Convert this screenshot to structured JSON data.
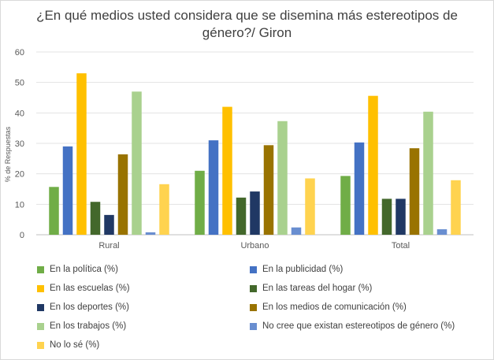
{
  "chart_data": {
    "type": "bar",
    "title": "¿En qué medios usted considera que se disemina más estereotipos de género?/ Giron",
    "ylabel": "% de Respuestas",
    "xlabel": "",
    "ylim": [
      0,
      60
    ],
    "yticks": [
      "0",
      "10",
      "20",
      "30",
      "40",
      "50",
      "60"
    ],
    "grid": true,
    "legend_position": "bottom",
    "categories": [
      "Rural",
      "Urbano",
      "Total"
    ],
    "series": [
      {
        "name": "En la política (%)",
        "color": "#70ad47",
        "values": [
          15.7,
          21.0,
          19.3
        ]
      },
      {
        "name": "En la publicidad (%)",
        "color": "#4472c4",
        "values": [
          29.0,
          31.0,
          30.3
        ]
      },
      {
        "name": "En las escuelas (%)",
        "color": "#ffc000",
        "values": [
          53.0,
          42.0,
          45.6
        ]
      },
      {
        "name": "En las tareas del hogar (%)",
        "color": "#43682b",
        "values": [
          10.8,
          12.2,
          11.8
        ]
      },
      {
        "name": "En los deportes (%)",
        "color": "#203864",
        "values": [
          6.5,
          14.2,
          11.8
        ]
      },
      {
        "name": "En los medios de comunicación (%)",
        "color": "#997300",
        "values": [
          26.4,
          29.4,
          28.4
        ]
      },
      {
        "name": "En los trabajos (%)",
        "color": "#a9d18e",
        "values": [
          47.0,
          37.3,
          40.4
        ]
      },
      {
        "name": "No cree que existan estereotipos de género (%)",
        "color": "#698ed0",
        "values": [
          0.8,
          2.4,
          1.8
        ]
      },
      {
        "name": "No lo sé (%)",
        "color": "#ffd34f",
        "values": [
          16.6,
          18.5,
          17.9
        ]
      }
    ]
  }
}
